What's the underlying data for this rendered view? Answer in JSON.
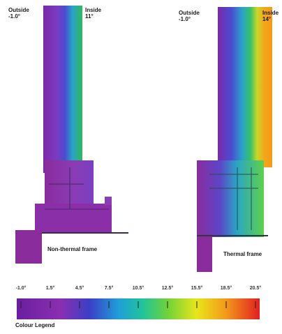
{
  "left_panel": {
    "outside_label": "Outside",
    "outside_temp": "-1.0°",
    "inside_label": "Inside",
    "inside_temp": "11°",
    "caption": "Non-thermal frame"
  },
  "right_panel": {
    "outside_label": "Outside",
    "outside_temp": "-1.0°",
    "inside_label": "Inside",
    "inside_temp": "14°",
    "caption": "Thermal frame"
  },
  "legend": {
    "title": "Colour Legend",
    "ticks": [
      "-1.0°",
      "1.5°",
      "4.5°",
      "7.5°",
      "10.5°",
      "12.5°",
      "15.5°",
      "18.5°",
      "20.5°"
    ],
    "colors": [
      "#6a1fa0",
      "#8a2fb0",
      "#3b3fc6",
      "#1f9fd8",
      "#21c49a",
      "#6fd23a",
      "#e8e61a",
      "#f49a1a",
      "#e02020"
    ]
  }
}
